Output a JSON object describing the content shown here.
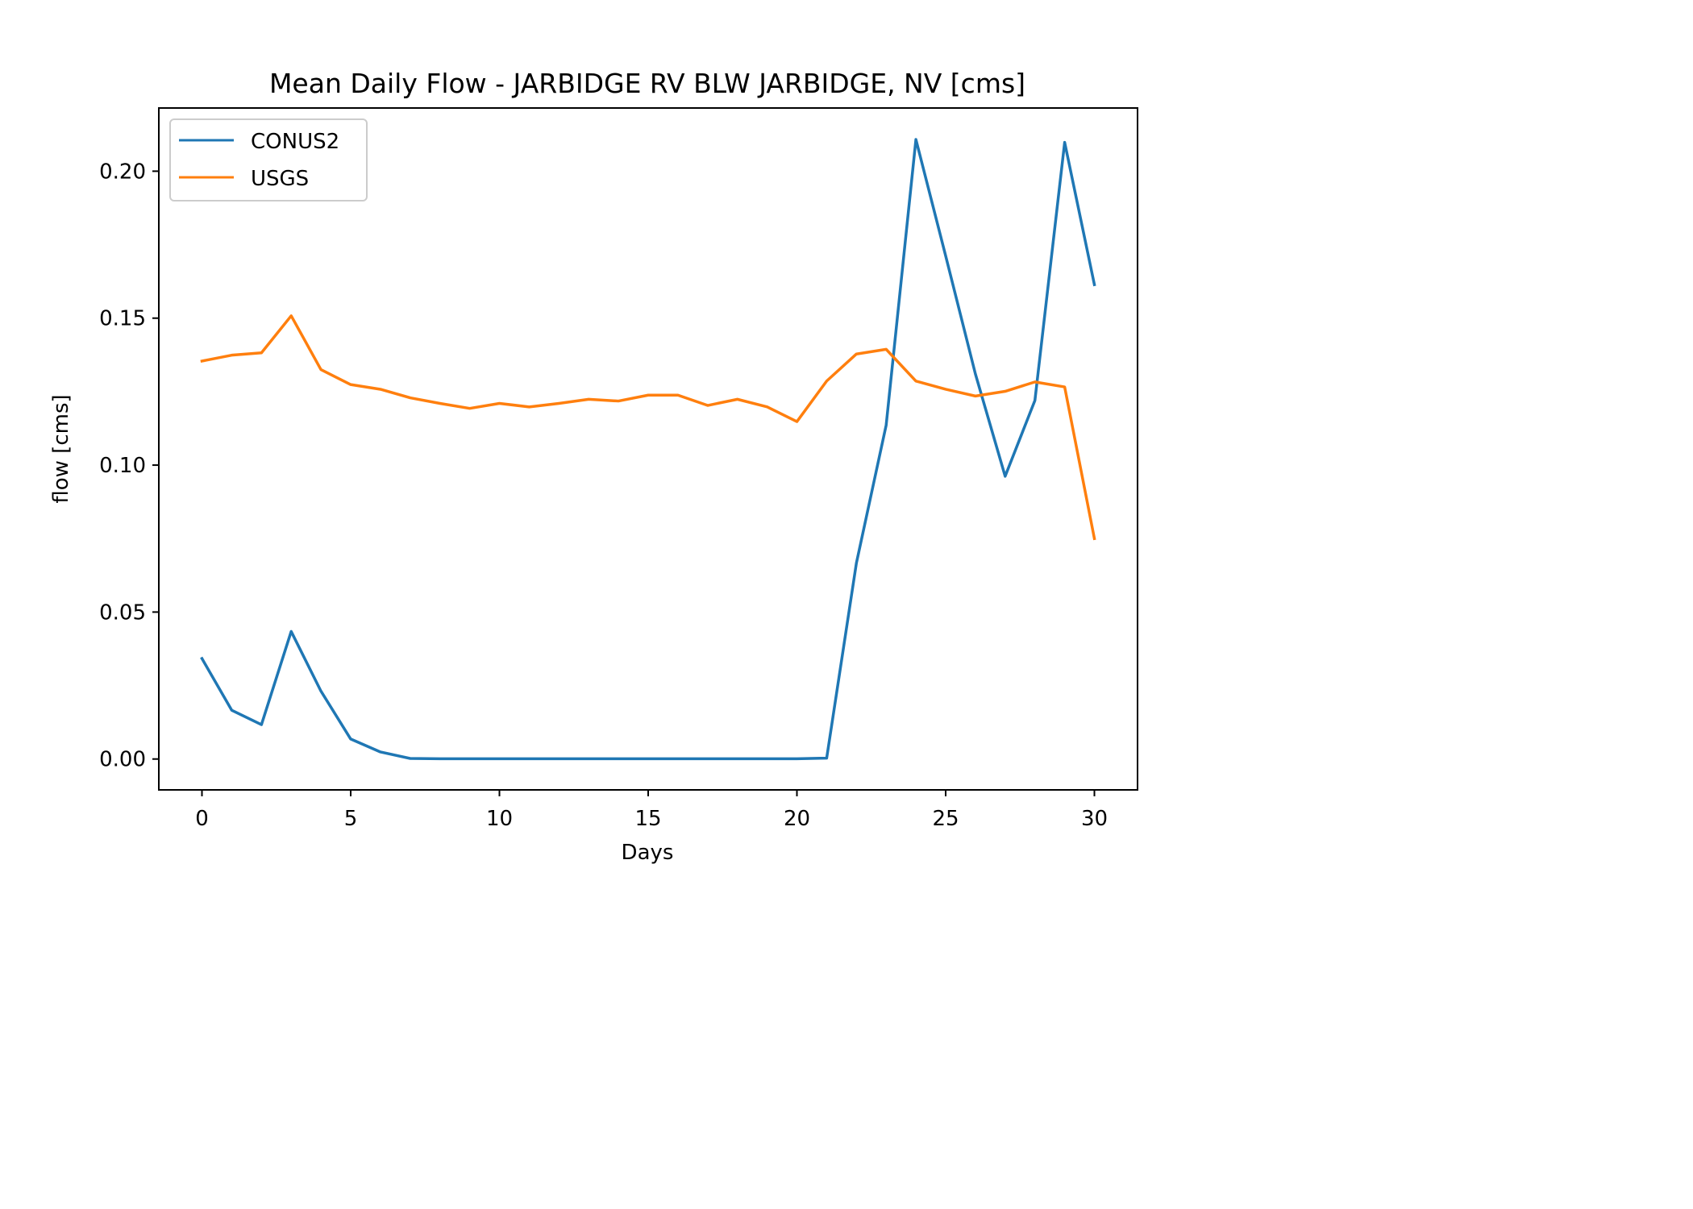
{
  "chart_data": {
    "type": "line",
    "title": "Mean Daily Flow - JARBIDGE RV BLW JARBIDGE, NV [cms]",
    "xlabel": "Days",
    "ylabel": "flow [cms]",
    "xlim": [
      -1.45,
      31.45
    ],
    "ylim": [
      -0.0105,
      0.2215
    ],
    "xticks": [
      0,
      5,
      10,
      15,
      20,
      25,
      30
    ],
    "xtick_labels": [
      "0",
      "5",
      "10",
      "15",
      "20",
      "25",
      "30"
    ],
    "yticks": [
      0.0,
      0.05,
      0.1,
      0.15,
      0.2
    ],
    "ytick_labels": [
      "0.00",
      "0.05",
      "0.10",
      "0.15",
      "0.20"
    ],
    "grid": false,
    "legend_position": "top-left",
    "x": [
      0,
      1,
      2,
      3,
      4,
      5,
      6,
      7,
      8,
      9,
      10,
      11,
      12,
      13,
      14,
      15,
      16,
      17,
      18,
      19,
      20,
      21,
      22,
      23,
      24,
      25,
      26,
      27,
      28,
      29,
      30
    ],
    "series": [
      {
        "name": "CONUS2",
        "color": "#1f77b4",
        "values": [
          0.0342,
          0.0166,
          0.0117,
          0.0434,
          0.0231,
          0.0068,
          0.0024,
          0.0002,
          0.0001,
          0.0001,
          0.0001,
          0.0001,
          0.0001,
          0.0001,
          0.0001,
          0.0001,
          0.0001,
          0.0001,
          0.0001,
          0.0001,
          0.0001,
          0.0003,
          0.0667,
          0.1136,
          0.2108,
          0.1712,
          0.131,
          0.0962,
          0.122,
          0.2098,
          0.1614
        ]
      },
      {
        "name": "USGS",
        "color": "#ff7f0e",
        "values": [
          0.1354,
          0.1374,
          0.1382,
          0.1508,
          0.1325,
          0.1274,
          0.1258,
          0.1229,
          0.121,
          0.1193,
          0.121,
          0.1198,
          0.121,
          0.1224,
          0.1218,
          0.1238,
          0.1238,
          0.1203,
          0.1224,
          0.1198,
          0.1148,
          0.1286,
          0.1378,
          0.1394,
          0.1286,
          0.1258,
          0.1235,
          0.1251,
          0.1283,
          0.1266,
          0.075
        ]
      }
    ]
  }
}
